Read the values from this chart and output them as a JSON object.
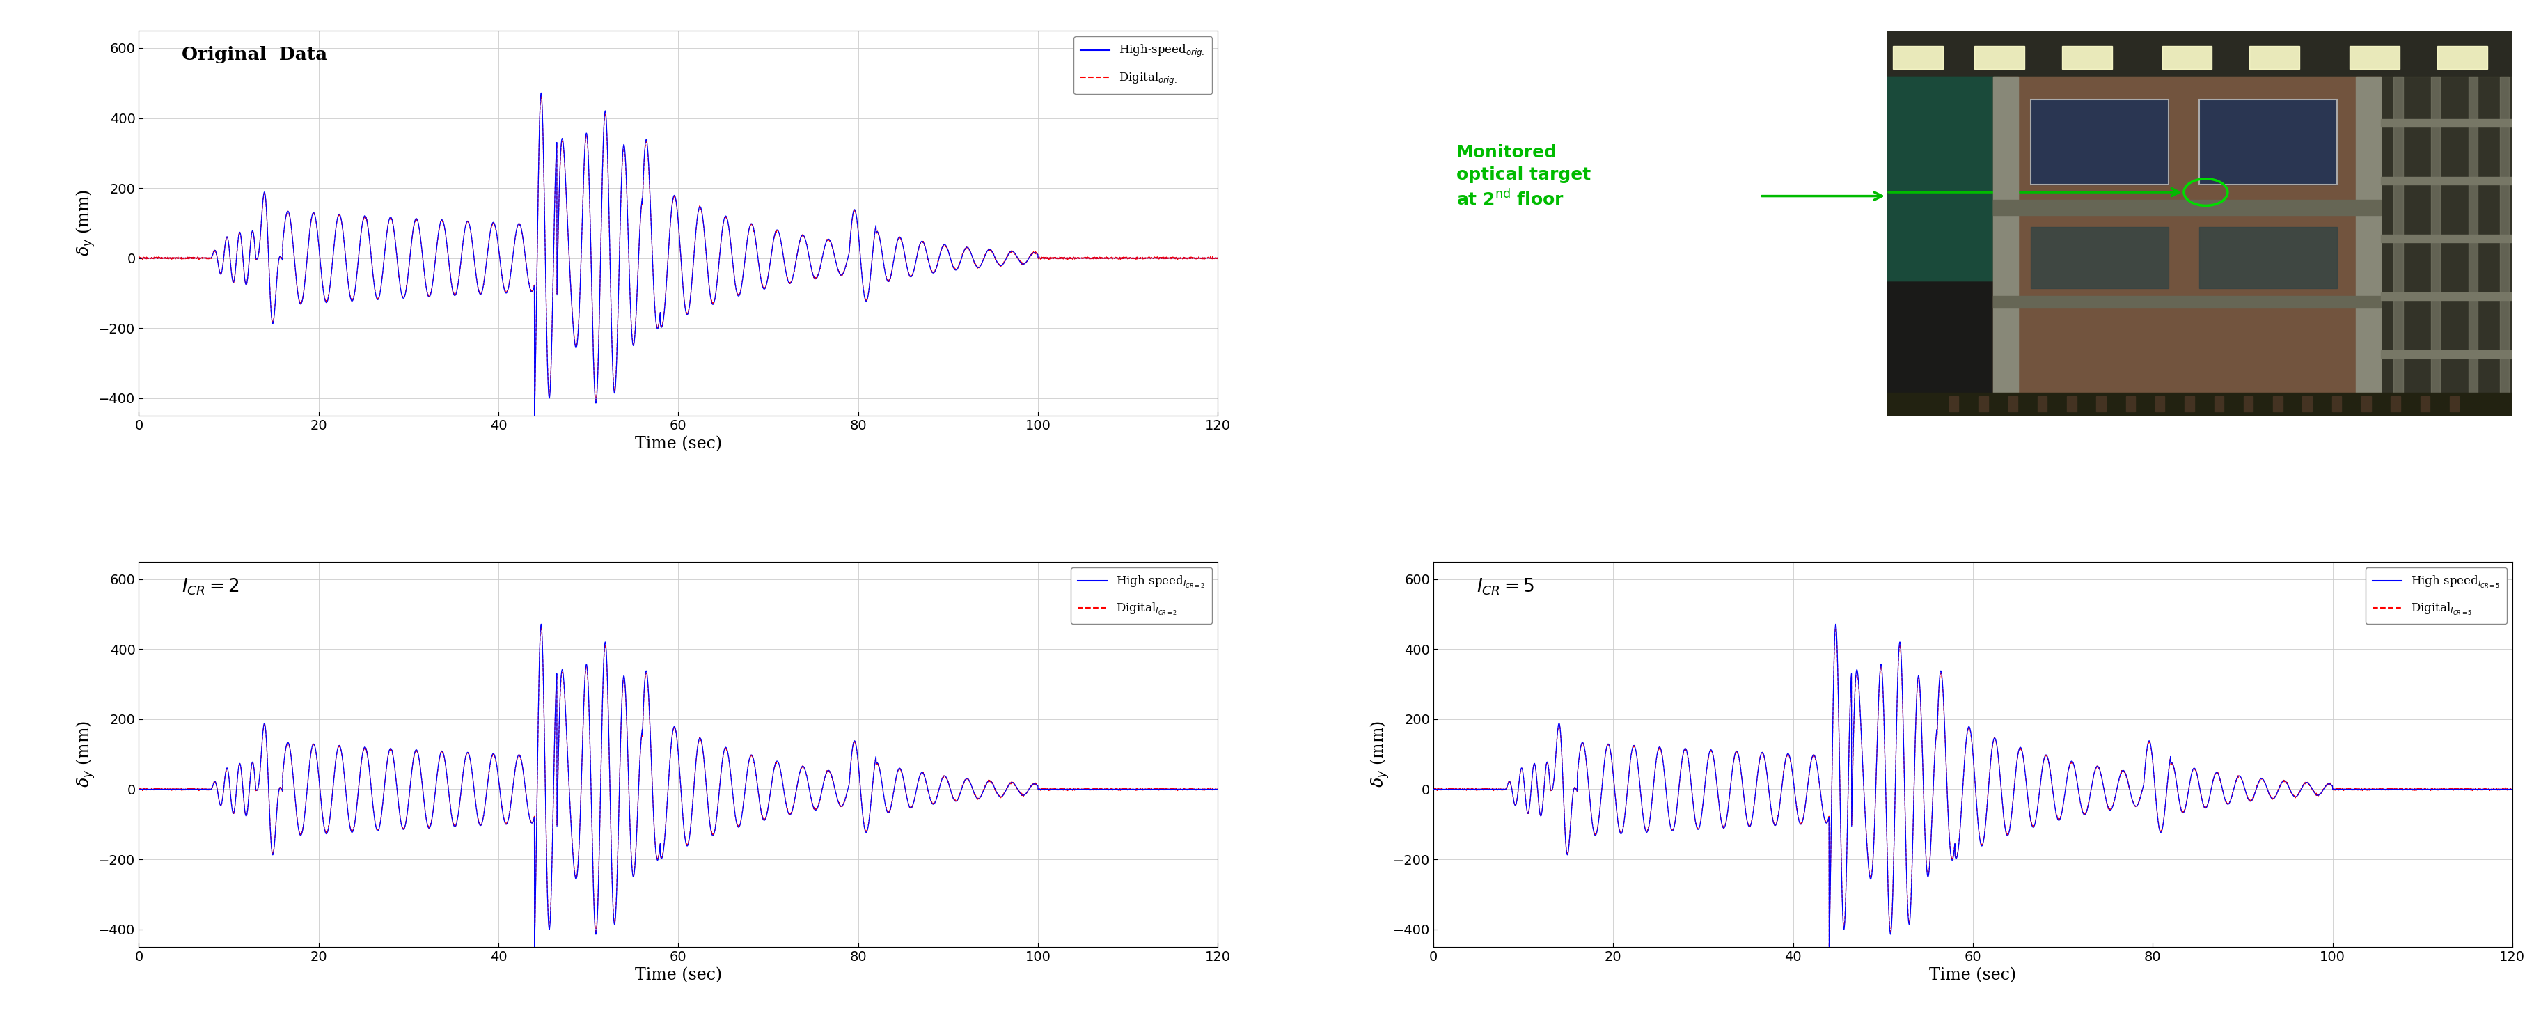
{
  "title_top_left": "Original Data",
  "title_bottom_left": "$I_{CR} = 2$",
  "title_bottom_right": "$I_{CR} = 5$",
  "xlabel": "Time (sec)",
  "ylabel": "$\\delta_y$ (mm)",
  "ylim": [
    -450,
    650
  ],
  "xlim": [
    0,
    120
  ],
  "yticks": [
    -400,
    -200,
    0,
    200,
    400,
    600
  ],
  "xticks": [
    0,
    20,
    40,
    60,
    80,
    100,
    120
  ],
  "legend_top_left_1": "High-speed",
  "legend_top_left_1_sub": "orig.",
  "legend_top_left_2": "Digital",
  "legend_top_left_2_sub": "orig.",
  "legend_bl_1": "High-speed",
  "legend_bl_1_sub": "I_{CR=2}",
  "legend_bl_2": "Digital",
  "legend_bl_2_sub": "I_{CR=2}",
  "legend_br_1": "High-speed",
  "legend_br_1_sub": "I_{CR=5}",
  "legend_br_2": "Digital",
  "legend_br_2_sub": "I_{CR=5}",
  "line_blue": "#0000FF",
  "line_red": "#FF0000",
  "grid_color": "#cccccc",
  "bg_color": "#ffffff",
  "annotation_color": "#00BB00"
}
